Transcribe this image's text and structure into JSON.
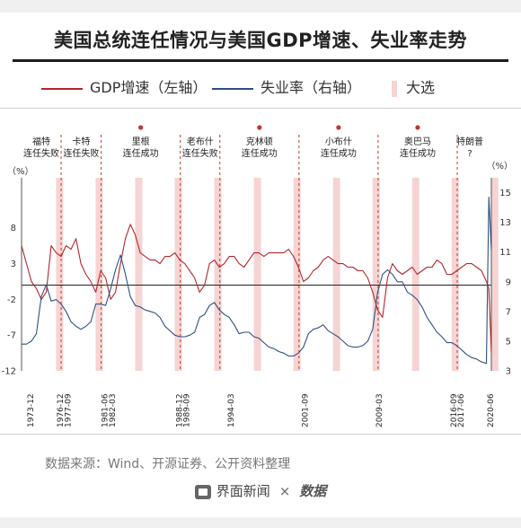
{
  "title": "美国总统连任情况与美国GDP增速、失业率走势",
  "legend": {
    "gdp": "GDP增速（左轴）",
    "unemp": "失业率（右轴）",
    "election": "大选"
  },
  "colors": {
    "gdp": "#b3262c",
    "unemp": "#2f4f82",
    "election": "#f6d4d3",
    "dashed": "#c0392b",
    "dot": "#c0392b"
  },
  "source": "数据来源：Wind、开源证券、公开资料整理",
  "footer": {
    "brand1": "界面新闻",
    "sep": "×",
    "brand2": "数据"
  },
  "chart_data": {
    "type": "line",
    "y_left": {
      "label": "（%）",
      "range": [
        -12,
        15
      ],
      "ticks": [
        "8",
        "3",
        "-2",
        "-7",
        "-12"
      ]
    },
    "y_right": {
      "label": "（%）",
      "range": [
        3,
        16
      ],
      "ticks": [
        "15",
        "13",
        "11",
        "9",
        "7",
        "5",
        "3"
      ]
    },
    "x_range": [
      1973.0,
      2020.5
    ],
    "x_ticks": [
      "1973-12",
      "1976-12",
      "1977-09",
      "1981-06",
      "1982-03",
      "1988-12",
      "1989-09",
      "1994-03",
      "2001-09",
      "2009-03",
      "2016-09",
      "2017-06",
      "2020-06"
    ],
    "election_years": [
      1976,
      1980,
      1984,
      1988,
      1992,
      1996,
      2000,
      2004,
      2008,
      2012,
      2016,
      2020
    ],
    "terms": [
      {
        "president": "福特",
        "result": "连任失败",
        "success": false
      },
      {
        "president": "卡特",
        "result": "连任失败",
        "success": false
      },
      {
        "president": "里根",
        "result": "连任成功",
        "success": true
      },
      {
        "president": "老布什",
        "result": "连任失败",
        "success": false
      },
      {
        "president": "克林顿",
        "result": "连任成功",
        "success": true
      },
      {
        "president": "小布什",
        "result": "连任成功",
        "success": true
      },
      {
        "president": "奥巴马",
        "result": "连任成功",
        "success": true
      },
      {
        "president": "特朗普",
        "result": "?",
        "success": null
      }
    ],
    "series": [
      {
        "name": "GDP增速（左轴）",
        "axis": "left",
        "x": [
          1973.0,
          1973.5,
          1974.0,
          1974.5,
          1975.0,
          1975.5,
          1976.0,
          1976.5,
          1977.0,
          1977.5,
          1978.0,
          1978.5,
          1979.0,
          1979.5,
          1980.0,
          1980.5,
          1981.0,
          1981.5,
          1982.0,
          1982.5,
          1983.0,
          1983.5,
          1984.0,
          1984.5,
          1985.0,
          1985.5,
          1986.0,
          1986.5,
          1987.0,
          1987.5,
          1988.0,
          1988.5,
          1989.0,
          1989.5,
          1990.0,
          1990.5,
          1991.0,
          1991.5,
          1992.0,
          1992.5,
          1993.0,
          1993.5,
          1994.0,
          1994.5,
          1995.0,
          1995.5,
          1996.0,
          1996.5,
          1997.0,
          1997.5,
          1998.0,
          1998.5,
          1999.0,
          1999.5,
          2000.0,
          2000.5,
          2001.0,
          2001.5,
          2002.0,
          2002.5,
          2003.0,
          2003.5,
          2004.0,
          2004.5,
          2005.0,
          2005.5,
          2006.0,
          2006.5,
          2007.0,
          2007.5,
          2008.0,
          2008.5,
          2009.0,
          2009.5,
          2010.0,
          2010.5,
          2011.0,
          2011.5,
          2012.0,
          2012.5,
          2013.0,
          2013.5,
          2014.0,
          2014.5,
          2015.0,
          2015.5,
          2016.0,
          2016.5,
          2017.0,
          2017.5,
          2018.0,
          2018.5,
          2019.0,
          2019.5,
          2020.0,
          2020.25,
          2020.5
        ],
        "values": [
          5.5,
          3.0,
          0.5,
          -0.5,
          -2.0,
          -1.0,
          5.5,
          4.5,
          4.0,
          5.5,
          5.0,
          6.5,
          3.0,
          1.5,
          0.5,
          -1.0,
          2.0,
          1.0,
          -2.0,
          -1.0,
          3.0,
          6.5,
          8.5,
          7.0,
          4.5,
          4.0,
          3.5,
          3.5,
          3.0,
          4.0,
          4.0,
          4.5,
          3.5,
          3.0,
          2.0,
          1.0,
          -1.0,
          0.0,
          3.0,
          3.5,
          2.5,
          3.0,
          4.0,
          4.0,
          3.0,
          2.5,
          3.5,
          4.5,
          4.5,
          4.0,
          4.5,
          4.5,
          4.5,
          4.5,
          5.0,
          4.0,
          2.5,
          0.5,
          1.0,
          2.0,
          2.5,
          3.5,
          4.0,
          3.5,
          3.0,
          3.0,
          2.5,
          2.5,
          2.0,
          2.0,
          1.0,
          -1.0,
          -3.5,
          -4.5,
          1.0,
          3.0,
          2.0,
          1.5,
          2.0,
          2.5,
          1.5,
          2.0,
          2.5,
          2.5,
          3.5,
          3.0,
          1.5,
          1.5,
          2.0,
          2.5,
          3.0,
          3.0,
          2.5,
          2.0,
          0.5,
          -0.5,
          -9.5
        ]
      },
      {
        "name": "失业率（右轴）",
        "axis": "right",
        "x": [
          1973.0,
          1973.5,
          1974.0,
          1974.5,
          1975.0,
          1975.5,
          1976.0,
          1976.5,
          1977.0,
          1977.5,
          1978.0,
          1978.5,
          1979.0,
          1979.5,
          1980.0,
          1980.5,
          1981.0,
          1981.5,
          1982.0,
          1982.5,
          1983.0,
          1983.5,
          1984.0,
          1984.5,
          1985.0,
          1985.5,
          1986.0,
          1986.5,
          1987.0,
          1987.5,
          1988.0,
          1988.5,
          1989.0,
          1989.5,
          1990.0,
          1990.5,
          1991.0,
          1991.5,
          1992.0,
          1992.5,
          1993.0,
          1993.5,
          1994.0,
          1994.5,
          1995.0,
          1995.5,
          1996.0,
          1996.5,
          1997.0,
          1997.5,
          1998.0,
          1998.5,
          1999.0,
          1999.5,
          2000.0,
          2000.5,
          2001.0,
          2001.5,
          2002.0,
          2002.5,
          2003.0,
          2003.5,
          2004.0,
          2004.5,
          2005.0,
          2005.5,
          2006.0,
          2006.5,
          2007.0,
          2007.5,
          2008.0,
          2008.5,
          2009.0,
          2009.5,
          2010.0,
          2010.5,
          2011.0,
          2011.5,
          2012.0,
          2012.5,
          2013.0,
          2013.5,
          2014.0,
          2014.5,
          2015.0,
          2015.5,
          2016.0,
          2016.5,
          2017.0,
          2017.5,
          2018.0,
          2018.5,
          2019.0,
          2019.5,
          2020.0,
          2020.25,
          2020.5
        ],
        "values": [
          4.8,
          4.8,
          5.0,
          5.5,
          8.0,
          8.8,
          7.7,
          7.8,
          7.5,
          7.0,
          6.3,
          6.0,
          5.8,
          6.0,
          6.3,
          7.5,
          7.5,
          7.4,
          8.5,
          9.8,
          10.8,
          9.5,
          8.0,
          7.4,
          7.3,
          7.1,
          7.0,
          6.9,
          6.6,
          6.0,
          5.7,
          5.4,
          5.3,
          5.3,
          5.4,
          5.6,
          6.6,
          6.8,
          7.4,
          7.6,
          7.1,
          6.8,
          6.6,
          6.1,
          5.5,
          5.6,
          5.6,
          5.3,
          5.2,
          4.9,
          4.6,
          4.5,
          4.3,
          4.2,
          4.0,
          4.0,
          4.2,
          4.6,
          5.5,
          5.8,
          5.9,
          6.1,
          5.7,
          5.5,
          5.3,
          5.0,
          4.7,
          4.6,
          4.6,
          4.7,
          5.0,
          5.8,
          8.3,
          9.5,
          9.8,
          9.5,
          9.0,
          9.0,
          8.3,
          8.1,
          7.8,
          7.3,
          6.6,
          6.1,
          5.6,
          5.3,
          4.9,
          4.9,
          4.7,
          4.4,
          4.1,
          3.9,
          3.8,
          3.6,
          3.5,
          14.7,
          11.1
        ]
      }
    ]
  }
}
